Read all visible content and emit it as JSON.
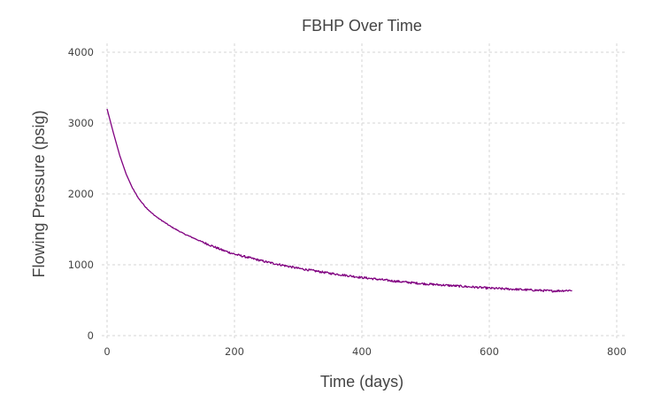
{
  "chart_data": {
    "type": "line",
    "title": "FBHP Over Time",
    "xlabel": "Time (days)",
    "ylabel": "Flowing Pressure (psig)",
    "xlim": [
      0,
      800
    ],
    "ylim": [
      0,
      4000
    ],
    "xticks": [
      "0",
      "200",
      "400",
      "600",
      "800"
    ],
    "yticks": [
      "0",
      "1000",
      "2000",
      "3000",
      "4000"
    ],
    "grid": true,
    "legend": "none",
    "series": [
      {
        "color": "#800080",
        "x": [
          0,
          10,
          20,
          30,
          40,
          50,
          60,
          70,
          80,
          100,
          120,
          150,
          180,
          200,
          250,
          300,
          350,
          400,
          450,
          500,
          550,
          600,
          650,
          700,
          730
        ],
        "y": [
          3200,
          2860,
          2540,
          2280,
          2080,
          1930,
          1820,
          1730,
          1660,
          1540,
          1440,
          1320,
          1210,
          1150,
          1040,
          950,
          880,
          820,
          770,
          730,
          700,
          670,
          650,
          630,
          640
        ]
      }
    ]
  }
}
